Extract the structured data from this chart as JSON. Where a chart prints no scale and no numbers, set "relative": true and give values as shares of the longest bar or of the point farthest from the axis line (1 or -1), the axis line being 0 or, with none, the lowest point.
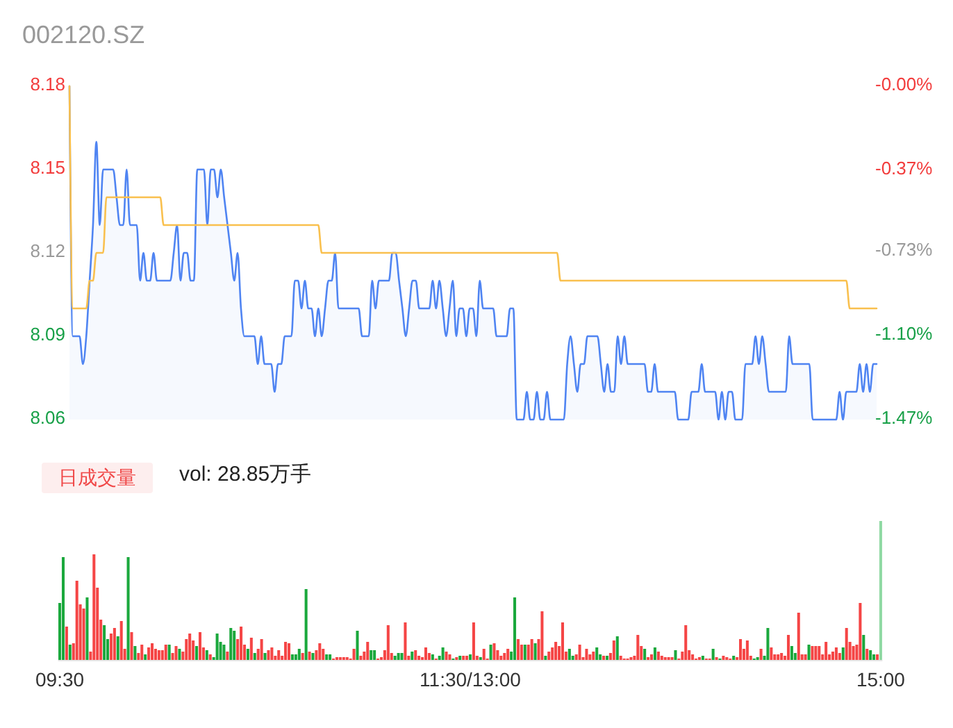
{
  "chart_data": [
    {
      "type": "line",
      "title": "002120.SZ",
      "categories": [
        null,
        null,
        null,
        null,
        null,
        null,
        null,
        null,
        null,
        null,
        null,
        null,
        null,
        null,
        null,
        null,
        null,
        null,
        null,
        null,
        null,
        null,
        null,
        null,
        null,
        null,
        null,
        null,
        null,
        null,
        null,
        null,
        null,
        null,
        null,
        null,
        null,
        null,
        null,
        null,
        null,
        null,
        null,
        null,
        null,
        null,
        null,
        null,
        null,
        null,
        null,
        null,
        null,
        null,
        null,
        null,
        null,
        null,
        null,
        null,
        null,
        null,
        null,
        null,
        null,
        null,
        null,
        null,
        null,
        null,
        null,
        null,
        null,
        null,
        null,
        null,
        null,
        null,
        null,
        null,
        null,
        null,
        null,
        null,
        null,
        null,
        null,
        null,
        null,
        null,
        null,
        null,
        null,
        null,
        null,
        null,
        null,
        null,
        null,
        null,
        null,
        null,
        null,
        null,
        null,
        null,
        null,
        null,
        null,
        null,
        null,
        null,
        null,
        null,
        null,
        null,
        null,
        null,
        null,
        null,
        null,
        null,
        null,
        null,
        null,
        null,
        null,
        null,
        null,
        null,
        null,
        null,
        null,
        null,
        null,
        null,
        null,
        null,
        null,
        null,
        null,
        null,
        null,
        null,
        null,
        null,
        null,
        null,
        null,
        null,
        null,
        null,
        null,
        null,
        null,
        null,
        null,
        null,
        null,
        null,
        null,
        null,
        null,
        null,
        null,
        null,
        null,
        null,
        null,
        null,
        null,
        null,
        null,
        null,
        null,
        null,
        null,
        null,
        null,
        null,
        null,
        null,
        null,
        null,
        null,
        null,
        null,
        null,
        null,
        null,
        null,
        null,
        null,
        null,
        null,
        null,
        null,
        null,
        null,
        null,
        null,
        null,
        null,
        null,
        null,
        null,
        null,
        null,
        null,
        null,
        null,
        null,
        null,
        null,
        null,
        null,
        null,
        null,
        null,
        null,
        null,
        null,
        null,
        null,
        null,
        null,
        null,
        null,
        null,
        null,
        null,
        null,
        null,
        null,
        null,
        null,
        null,
        null,
        null,
        null,
        null
      ],
      "ylim": [
        8.06,
        8.18
      ],
      "yticks": [
        8.06,
        8.09,
        8.12,
        8.15,
        8.18
      ],
      "y2lim": [
        -1.47,
        0
      ],
      "y2ticks": [
        {
          "value": -1.47,
          "label": "-1.47%"
        },
        {
          "value": -1.1,
          "label": "-1.10%"
        },
        {
          "value": -0.73,
          "label": "-0.73%"
        },
        {
          "value": -0.37,
          "label": "-0.37%"
        },
        {
          "value": 0,
          "label": "-0.00%"
        }
      ],
      "series": [
        {
          "type": "area",
          "color": "#4f84f2",
          "values": [
            8.18,
            8.09,
            8.09,
            8.09,
            8.08,
            8.09,
            8.11,
            8.13,
            8.16,
            8.13,
            8.15,
            8.15,
            8.15,
            8.15,
            8.14,
            8.13,
            8.13,
            8.15,
            8.13,
            8.13,
            8.13,
            8.11,
            8.12,
            8.11,
            8.11,
            8.12,
            8.11,
            8.11,
            8.11,
            8.11,
            8.11,
            8.12,
            8.13,
            8.11,
            8.12,
            8.12,
            8.11,
            8.11,
            8.15,
            8.15,
            8.15,
            8.13,
            8.15,
            8.15,
            8.14,
            8.15,
            8.14,
            8.13,
            8.12,
            8.11,
            8.12,
            8.1,
            8.09,
            8.09,
            8.09,
            8.09,
            8.08,
            8.09,
            8.08,
            8.08,
            8.08,
            8.07,
            8.08,
            8.08,
            8.09,
            8.09,
            8.09,
            8.11,
            8.11,
            8.1,
            8.11,
            8.1,
            8.1,
            8.09,
            8.1,
            8.09,
            8.1,
            8.11,
            8.11,
            8.12,
            8.1,
            8.1,
            8.1,
            8.1,
            8.1,
            8.1,
            8.1,
            8.09,
            8.09,
            8.09,
            8.11,
            8.1,
            8.11,
            8.11,
            8.11,
            8.11,
            8.12,
            8.12,
            8.11,
            8.1,
            8.09,
            8.1,
            8.11,
            8.11,
            8.1,
            8.1,
            8.1,
            8.1,
            8.11,
            8.1,
            8.11,
            8.1,
            8.09,
            8.1,
            8.11,
            8.09,
            8.1,
            8.1,
            8.09,
            8.1,
            8.1,
            8.09,
            8.11,
            8.1,
            8.1,
            8.1,
            8.1,
            8.09,
            8.09,
            8.09,
            8.09,
            8.1,
            8.1,
            8.06,
            8.06,
            8.06,
            8.07,
            8.06,
            8.06,
            8.07,
            8.06,
            8.06,
            8.07,
            8.06,
            8.06,
            8.06,
            8.06,
            8.06,
            8.08,
            8.09,
            8.08,
            8.07,
            8.08,
            8.08,
            8.09,
            8.09,
            8.09,
            8.09,
            8.08,
            8.07,
            8.08,
            8.07,
            8.07,
            8.09,
            8.08,
            8.09,
            8.08,
            8.08,
            8.08,
            8.08,
            8.08,
            8.08,
            8.07,
            8.07,
            8.08,
            8.07,
            8.07,
            8.07,
            8.07,
            8.07,
            8.07,
            8.06,
            8.06,
            8.06,
            8.06,
            8.07,
            8.07,
            8.07,
            8.08,
            8.07,
            8.07,
            8.07,
            8.07,
            8.06,
            8.07,
            8.06,
            8.07,
            8.07,
            8.06,
            8.06,
            8.06,
            8.08,
            8.08,
            8.08,
            8.09,
            8.08,
            8.09,
            8.08,
            8.07,
            8.07,
            8.07,
            8.07,
            8.07,
            8.07,
            8.09,
            8.08,
            8.08,
            8.08,
            8.08,
            8.08,
            8.08,
            8.06,
            8.06,
            8.06,
            8.06,
            8.06,
            8.06,
            8.06,
            8.06,
            8.07,
            8.06,
            8.07,
            8.07,
            8.07,
            8.07,
            8.08,
            8.07,
            8.08,
            8.07,
            8.08,
            8.08
          ]
        },
        {
          "color": "#f9c04e",
          "values": [
            8.18,
            8.1,
            8.1,
            8.1,
            8.1,
            8.1,
            8.11,
            8.11,
            8.12,
            8.12,
            8.12,
            8.14,
            8.14,
            8.14,
            8.14,
            8.14,
            8.14,
            8.14,
            8.14,
            8.14,
            8.14,
            8.14,
            8.14,
            8.14,
            8.14,
            8.14,
            8.14,
            8.14,
            8.13,
            8.13,
            8.13,
            8.13,
            8.13,
            8.13,
            8.13,
            8.13,
            8.13,
            8.13,
            8.13,
            8.13,
            8.13,
            8.13,
            8.13,
            8.13,
            8.13,
            8.13,
            8.13,
            8.13,
            8.13,
            8.13,
            8.13,
            8.13,
            8.13,
            8.13,
            8.13,
            8.13,
            8.13,
            8.13,
            8.13,
            8.13,
            8.13,
            8.13,
            8.13,
            8.13,
            8.13,
            8.13,
            8.13,
            8.13,
            8.13,
            8.13,
            8.13,
            8.13,
            8.13,
            8.13,
            8.13,
            8.12,
            8.12,
            8.12,
            8.12,
            8.12,
            8.12,
            8.12,
            8.12,
            8.12,
            8.12,
            8.12,
            8.12,
            8.12,
            8.12,
            8.12,
            8.12,
            8.12,
            8.12,
            8.12,
            8.12,
            8.12,
            8.12,
            8.12,
            8.12,
            8.12,
            8.12,
            8.12,
            8.12,
            8.12,
            8.12,
            8.12,
            8.12,
            8.12,
            8.12,
            8.12,
            8.12,
            8.12,
            8.12,
            8.12,
            8.12,
            8.12,
            8.12,
            8.12,
            8.12,
            8.12,
            8.12,
            8.12,
            8.12,
            8.12,
            8.12,
            8.12,
            8.12,
            8.12,
            8.12,
            8.12,
            8.12,
            8.12,
            8.12,
            8.12,
            8.12,
            8.12,
            8.12,
            8.12,
            8.12,
            8.12,
            8.12,
            8.12,
            8.12,
            8.12,
            8.12,
            8.12,
            8.11,
            8.11,
            8.11,
            8.11,
            8.11,
            8.11,
            8.11,
            8.11,
            8.11,
            8.11,
            8.11,
            8.11,
            8.11,
            8.11,
            8.11,
            8.11,
            8.11,
            8.11,
            8.11,
            8.11,
            8.11,
            8.11,
            8.11,
            8.11,
            8.11,
            8.11,
            8.11,
            8.11,
            8.11,
            8.11,
            8.11,
            8.11,
            8.11,
            8.11,
            8.11,
            8.11,
            8.11,
            8.11,
            8.11,
            8.11,
            8.11,
            8.11,
            8.11,
            8.11,
            8.11,
            8.11,
            8.11,
            8.11,
            8.11,
            8.11,
            8.11,
            8.11,
            8.11,
            8.11,
            8.11,
            8.11,
            8.11,
            8.11,
            8.11,
            8.11,
            8.11,
            8.11,
            8.11,
            8.11,
            8.11,
            8.11,
            8.11,
            8.11,
            8.11,
            8.11,
            8.11,
            8.11,
            8.11,
            8.11,
            8.11,
            8.11,
            8.11,
            8.11,
            8.11,
            8.11,
            8.11,
            8.11,
            8.11,
            8.11,
            8.11,
            8.11,
            8.1,
            8.1,
            8.1,
            8.1,
            8.1,
            8.1,
            8.1,
            8.1,
            8.1
          ]
        }
      ]
    },
    {
      "type": "bar",
      "title": "日成交量",
      "subtitle": "vol: 28.85万手",
      "relative": true,
      "categories": [
        "09:30",
        null,
        null,
        null,
        null,
        null,
        null,
        null,
        null,
        null,
        null,
        null,
        null,
        null,
        null,
        null,
        null,
        null,
        null,
        null,
        null,
        null,
        null,
        null,
        null,
        null,
        null,
        null,
        null,
        null,
        null,
        null,
        null,
        null,
        null,
        null,
        null,
        null,
        null,
        null,
        null,
        null,
        null,
        null,
        null,
        null,
        null,
        null,
        null,
        null,
        null,
        null,
        null,
        null,
        null,
        null,
        null,
        null,
        null,
        null,
        null,
        null,
        null,
        null,
        null,
        null,
        null,
        null,
        null,
        null,
        null,
        null,
        null,
        null,
        null,
        null,
        null,
        null,
        null,
        null,
        null,
        null,
        null,
        null,
        null,
        null,
        null,
        null,
        null,
        null,
        null,
        null,
        null,
        null,
        null,
        null,
        null,
        null,
        null,
        null,
        null,
        null,
        null,
        null,
        null,
        null,
        null,
        null,
        null,
        null,
        null,
        null,
        null,
        null,
        null,
        null,
        null,
        null,
        null,
        null,
        "11:30/13:00",
        null,
        null,
        null,
        null,
        null,
        null,
        null,
        null,
        null,
        null,
        null,
        null,
        null,
        null,
        null,
        null,
        null,
        null,
        null,
        null,
        null,
        null,
        null,
        null,
        null,
        null,
        null,
        null,
        null,
        null,
        null,
        null,
        null,
        null,
        null,
        null,
        null,
        null,
        null,
        null,
        null,
        null,
        null,
        null,
        null,
        null,
        null,
        null,
        null,
        null,
        null,
        null,
        null,
        null,
        null,
        null,
        null,
        null,
        null,
        null,
        null,
        null,
        null,
        null,
        null,
        null,
        null,
        null,
        null,
        null,
        null,
        null,
        null,
        null,
        null,
        null,
        null,
        null,
        null,
        null,
        null,
        null,
        null,
        null,
        null,
        null,
        null,
        null,
        null,
        null,
        null,
        null,
        null,
        null,
        null,
        null,
        null,
        null,
        null,
        null,
        null,
        null,
        null,
        null,
        null,
        null,
        null,
        null,
        null,
        null,
        null,
        null,
        null,
        null,
        null,
        null,
        null,
        null,
        null,
        "15:00"
      ],
      "values": [
        0.41,
        0.74,
        0.24,
        0.11,
        0.12,
        0.57,
        0.4,
        0.37,
        0.45,
        0.06,
        0.76,
        0.52,
        0.29,
        0.25,
        0.15,
        0.19,
        0.23,
        0.17,
        0.28,
        0.08,
        0.74,
        0.2,
        0.1,
        0.05,
        0.11,
        0.04,
        0.09,
        0.12,
        0.08,
        0.07,
        0.07,
        0.11,
        0.11,
        0.05,
        0.1,
        0.08,
        0.06,
        0.15,
        0.19,
        0.14,
        0.1,
        0.2,
        0.09,
        0.07,
        0.04,
        0.02,
        0.19,
        0.13,
        0.11,
        0.06,
        0.23,
        0.21,
        0.15,
        0.24,
        0.11,
        0.08,
        0.16,
        0.05,
        0.08,
        0.15,
        0.05,
        0.07,
        0.09,
        0.03,
        0.07,
        0.03,
        0.13,
        0.12,
        0.04,
        0.04,
        0.08,
        0.05,
        0.51,
        0.06,
        0.05,
        0.07,
        0.12,
        0.08,
        0.04,
        0.04,
        0.01,
        0.02,
        0.02,
        0.02,
        0.02,
        0.01,
        0.08,
        0.21,
        0.03,
        0.06,
        0.13,
        0.07,
        0.07,
        0.01,
        0.02,
        0.07,
        0.25,
        0.05,
        0.03,
        0.05,
        0.05,
        0.27,
        0.03,
        0.06,
        0.07,
        0.03,
        0.02,
        0.09,
        0.05,
        0.04,
        0.01,
        0.03,
        0.09,
        0.06,
        0.04,
        0.01,
        0.02,
        0.03,
        0.03,
        0.03,
        0.04,
        0.27,
        0.03,
        0.02,
        0.08,
        0.01,
        0.11,
        0.12,
        0.07,
        0.03,
        0.05,
        0.08,
        0.06,
        0.45,
        0.15,
        0.11,
        0.11,
        0.11,
        0.15,
        0.12,
        0.15,
        0.35,
        0.03,
        0.06,
        0.09,
        0.13,
        0.1,
        0.27,
        0.06,
        0.08,
        0.03,
        0.04,
        0.11,
        0.02,
        0.08,
        0.04,
        0.06,
        0.09,
        0.04,
        0.03,
        0.03,
        0.05,
        0.14,
        0.17,
        0.03,
        0.01,
        0.01,
        0.02,
        0.03,
        0.18,
        0.1,
        0.08,
        0.02,
        0.04,
        0.09,
        0.06,
        0.03,
        0.02,
        0.02,
        0.02,
        0.07,
        0.01,
        0.06,
        0.25,
        0.07,
        0.04,
        0.01,
        0.02,
        0.03,
        0.01,
        0.01,
        0.08,
        0.02,
        0.01,
        0.03,
        0.02,
        0.01,
        0.03,
        0.02,
        0.15,
        0.08,
        0.14,
        0.03,
        0.01,
        0.02,
        0.08,
        0.03,
        0.23,
        0.09,
        0.04,
        0.04,
        0.05,
        0.03,
        0.18,
        0.1,
        0.05,
        0.34,
        0.04,
        0.04,
        0.11,
        0.1,
        0.1,
        0.1,
        0.04,
        0.13,
        0.04,
        0.06,
        0.09,
        0.05,
        0.09,
        0.23,
        0.13,
        0.1,
        0.11,
        0.41,
        0.18,
        0.08,
        0.07,
        0.04,
        0.04,
        1
      ],
      "colors": [
        "#1aa83c",
        "#1aa83c",
        "#f54545",
        "#1aa83c",
        "#f54545",
        "#f54545",
        "#f54545",
        "#f54545",
        "#1aa83c",
        "#f54545",
        "#f54545",
        "#f54545",
        "#f54545",
        "#1aa83c",
        "#1aa83c",
        "#f54545",
        "#f54545",
        "#1aa83c",
        "#f54545",
        "#f54545",
        "#1aa83c",
        "#f54545",
        "#1aa83c",
        "#f54545",
        "#f54545",
        "#1aa83c",
        "#f54545",
        "#f54545",
        "#f54545",
        "#f54545",
        "#f54545",
        "#f54545",
        "#1aa83c",
        "#f54545",
        "#f54545",
        "#1aa83c",
        "#f54545",
        "#f54545",
        "#f54545",
        "#f54545",
        "#1aa83c",
        "#f54545",
        "#f54545",
        "#1aa83c",
        "#f54545",
        "#1aa83c",
        "#1aa83c",
        "#1aa83c",
        "#1aa83c",
        "#f54545",
        "#1aa83c",
        "#1aa83c",
        "#f54545",
        "#f54545",
        "#f54545",
        "#1aa83c",
        "#f54545",
        "#1aa83c",
        "#f54545",
        "#f54545",
        "#1aa83c",
        "#f54545",
        "#f54545",
        "#f54545",
        "#f54545",
        "#f54545",
        "#f54545",
        "#f54545",
        "#1aa83c",
        "#1aa83c",
        "#1aa83c",
        "#f54545",
        "#1aa83c",
        "#f54545",
        "#1aa83c",
        "#f54545",
        "#f54545",
        "#f54545",
        "#1aa83c",
        "#1aa83c",
        "#f54545",
        "#f54545",
        "#f54545",
        "#f54545",
        "#f54545",
        "#f54545",
        "#f54545",
        "#1aa83c",
        "#f54545",
        "#f54545",
        "#f54545",
        "#1aa83c",
        "#1aa83c",
        "#f54545",
        "#f54545",
        "#f54545",
        "#f54545",
        "#f54545",
        "#1aa83c",
        "#1aa83c",
        "#1aa83c",
        "#f54545",
        "#f54545",
        "#1aa83c",
        "#f54545",
        "#f54545",
        "#f54545",
        "#f54545",
        "#f54545",
        "#1aa83c",
        "#f54545",
        "#1aa83c",
        "#1aa83c",
        "#f54545",
        "#f54545",
        "#1aa83c",
        "#f54545",
        "#1aa83c",
        "#f54545",
        "#f54545",
        "#1aa83c",
        "#f54545",
        "#f54545",
        "#1aa83c",
        "#f54545",
        "#f54545",
        "#1aa83c",
        "#f54545",
        "#f54545",
        "#f54545",
        "#f54545",
        "#f54545",
        "#1aa83c",
        "#1aa83c",
        "#f54545",
        "#f54545",
        "#1aa83c",
        "#f54545",
        "#f54545",
        "#1aa83c",
        "#f54545",
        "#f54545",
        "#1aa83c",
        "#f54545",
        "#f54545",
        "#f54545",
        "#f54545",
        "#f54545",
        "#f54545",
        "#1aa83c",
        "#1aa83c",
        "#f54545",
        "#f54545",
        "#f54545",
        "#f54545",
        "#f54545",
        "#f54545",
        "#1aa83c",
        "#1aa83c",
        "#f54545",
        "#1aa83c",
        "#f54545",
        "#f54545",
        "#1aa83c",
        "#f54545",
        "#f54545",
        "#f54545",
        "#f54545",
        "#f54545",
        "#f54545",
        "#f54545",
        "#1aa83c",
        "#f54545",
        "#f54545",
        "#1aa83c",
        "#f54545",
        "#f54545",
        "#f54545",
        "#f54545",
        "#f54545",
        "#1aa83c",
        "#f54545",
        "#f54545",
        "#f54545",
        "#f54545",
        "#f54545",
        "#f54545",
        "#f54545",
        "#1aa83c",
        "#f54545",
        "#f54545",
        "#1aa83c",
        "#f54545",
        "#1aa83c",
        "#f54545",
        "#f54545",
        "#f54545",
        "#1aa83c",
        "#f54545",
        "#f54545",
        "#f54545",
        "#f54545",
        "#f54545",
        "#1aa83c",
        "#1aa83c",
        "#f54545",
        "#1aa83c",
        "#1aa83c",
        "#f54545",
        "#f54545",
        "#f54545",
        "#f54545",
        "#f54545",
        "#f54545",
        "#1aa83c",
        "#1aa83c",
        "#f54545",
        "#f54545",
        "#f54545",
        "#1aa83c",
        "#f54545",
        "#f54545",
        "#f54545",
        "#f54545",
        "#f54545",
        "#f54545",
        "#f54545",
        "#f54545",
        "#f54545",
        "#1aa83c",
        "#f54545",
        "#f54545",
        "#f54545",
        "#f54545",
        "#f54545",
        "#1aa83c",
        "#f54545",
        "#1aa83c",
        "#1aa83c",
        "#f54545",
        "#8fd9a3"
      ]
    }
  ]
}
